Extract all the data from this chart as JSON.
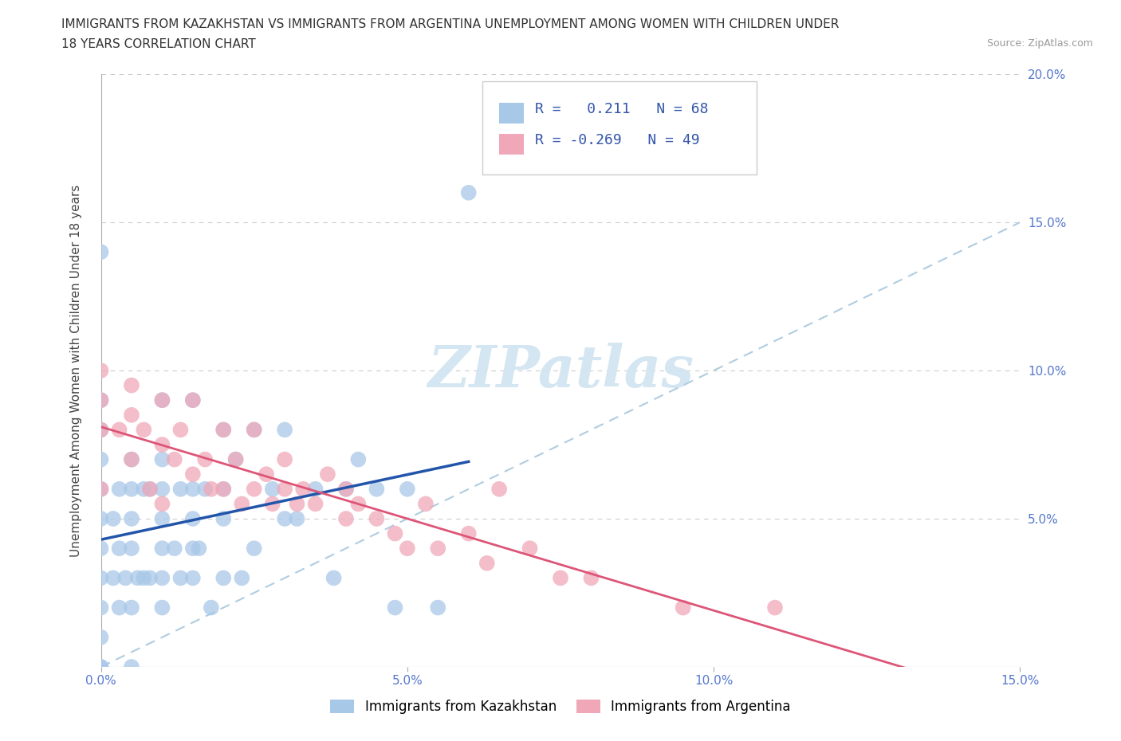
{
  "title_line1": "IMMIGRANTS FROM KAZAKHSTAN VS IMMIGRANTS FROM ARGENTINA UNEMPLOYMENT AMONG WOMEN WITH CHILDREN UNDER",
  "title_line2": "18 YEARS CORRELATION CHART",
  "source": "Source: ZipAtlas.com",
  "ylabel": "Unemployment Among Women with Children Under 18 years",
  "xlim": [
    0.0,
    0.15
  ],
  "ylim": [
    0.0,
    0.2
  ],
  "xtick_vals": [
    0.0,
    0.05,
    0.1,
    0.15
  ],
  "xtick_labels": [
    "0.0%",
    "5.0%",
    "10.0%",
    "15.0%"
  ],
  "ytick_vals": [
    0.05,
    0.1,
    0.15,
    0.2
  ],
  "ytick_labels": [
    "5.0%",
    "10.0%",
    "15.0%",
    "20.0%"
  ],
  "r_kaz": 0.211,
  "n_kaz": 68,
  "r_arg": -0.269,
  "n_arg": 49,
  "color_kaz": "#a8c8e8",
  "color_arg": "#f0a8b8",
  "line_color_kaz": "#2255aa",
  "line_color_arg": "#dd5577",
  "diagonal_color": "#b0cce0",
  "watermark_color": "#d0e4f0",
  "kaz_x": [
    0.0,
    0.0,
    0.0,
    0.0,
    0.0,
    0.0,
    0.0,
    0.0,
    0.0,
    0.0,
    0.0,
    0.0,
    0.002,
    0.002,
    0.003,
    0.003,
    0.003,
    0.004,
    0.005,
    0.005,
    0.005,
    0.005,
    0.005,
    0.005,
    0.006,
    0.007,
    0.007,
    0.008,
    0.008,
    0.01,
    0.01,
    0.01,
    0.01,
    0.01,
    0.01,
    0.01,
    0.012,
    0.013,
    0.013,
    0.015,
    0.015,
    0.015,
    0.015,
    0.015,
    0.016,
    0.017,
    0.018,
    0.02,
    0.02,
    0.02,
    0.02,
    0.022,
    0.023,
    0.025,
    0.025,
    0.028,
    0.03,
    0.03,
    0.032,
    0.035,
    0.038,
    0.04,
    0.042,
    0.045,
    0.048,
    0.05,
    0.055,
    0.06
  ],
  "kaz_y": [
    0.0,
    0.0,
    0.01,
    0.02,
    0.03,
    0.04,
    0.05,
    0.06,
    0.07,
    0.08,
    0.09,
    0.14,
    0.03,
    0.05,
    0.02,
    0.04,
    0.06,
    0.03,
    0.0,
    0.02,
    0.04,
    0.05,
    0.06,
    0.07,
    0.03,
    0.03,
    0.06,
    0.03,
    0.06,
    0.02,
    0.03,
    0.04,
    0.05,
    0.06,
    0.07,
    0.09,
    0.04,
    0.03,
    0.06,
    0.03,
    0.04,
    0.05,
    0.06,
    0.09,
    0.04,
    0.06,
    0.02,
    0.03,
    0.05,
    0.06,
    0.08,
    0.07,
    0.03,
    0.04,
    0.08,
    0.06,
    0.05,
    0.08,
    0.05,
    0.06,
    0.03,
    0.06,
    0.07,
    0.06,
    0.02,
    0.06,
    0.02,
    0.16
  ],
  "arg_x": [
    0.0,
    0.0,
    0.0,
    0.0,
    0.003,
    0.005,
    0.005,
    0.005,
    0.007,
    0.008,
    0.01,
    0.01,
    0.01,
    0.012,
    0.013,
    0.015,
    0.015,
    0.017,
    0.018,
    0.02,
    0.02,
    0.022,
    0.023,
    0.025,
    0.025,
    0.027,
    0.028,
    0.03,
    0.03,
    0.032,
    0.033,
    0.035,
    0.037,
    0.04,
    0.04,
    0.042,
    0.045,
    0.048,
    0.05,
    0.053,
    0.055,
    0.06,
    0.063,
    0.065,
    0.07,
    0.075,
    0.08,
    0.095,
    0.11
  ],
  "arg_y": [
    0.06,
    0.08,
    0.09,
    0.1,
    0.08,
    0.07,
    0.085,
    0.095,
    0.08,
    0.06,
    0.055,
    0.075,
    0.09,
    0.07,
    0.08,
    0.065,
    0.09,
    0.07,
    0.06,
    0.06,
    0.08,
    0.07,
    0.055,
    0.06,
    0.08,
    0.065,
    0.055,
    0.06,
    0.07,
    0.055,
    0.06,
    0.055,
    0.065,
    0.05,
    0.06,
    0.055,
    0.05,
    0.045,
    0.04,
    0.055,
    0.04,
    0.045,
    0.035,
    0.06,
    0.04,
    0.03,
    0.03,
    0.02,
    0.02
  ]
}
